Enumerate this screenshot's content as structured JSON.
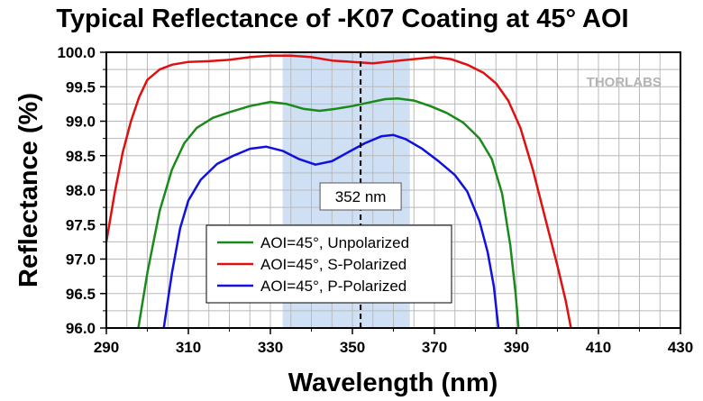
{
  "chart_data": {
    "type": "line",
    "title": "Typical Reflectance of -K07 Coating at 45° AOI",
    "xlabel": "Wavelength (nm)",
    "ylabel": "Reflectance (%)",
    "xlim": [
      290,
      430
    ],
    "ylim": [
      96.0,
      100.0
    ],
    "x_ticks": [
      "290",
      "310",
      "330",
      "350",
      "370",
      "390",
      "410",
      "430"
    ],
    "y_ticks": [
      "96.0",
      "96.5",
      "97.0",
      "97.5",
      "98.0",
      "98.5",
      "99.0",
      "99.5",
      "100.0"
    ],
    "grid": true,
    "legend_position": "lower-center",
    "highlight_band": {
      "x_start": 333,
      "x_end": 364,
      "color": "#cfe0f5"
    },
    "annotation": {
      "x": 352,
      "text": "352 nm"
    },
    "logo": "THORLABS",
    "series": [
      {
        "name": "AOI=45°, Unpolarized",
        "color": "#1a8a1a",
        "points": [
          [
            297.8,
            96.0
          ],
          [
            300,
            96.8
          ],
          [
            303,
            97.7
          ],
          [
            306,
            98.3
          ],
          [
            309,
            98.68
          ],
          [
            312,
            98.9
          ],
          [
            316,
            99.05
          ],
          [
            320,
            99.13
          ],
          [
            325,
            99.22
          ],
          [
            330,
            99.28
          ],
          [
            334,
            99.25
          ],
          [
            338,
            99.18
          ],
          [
            342,
            99.15
          ],
          [
            346,
            99.18
          ],
          [
            350,
            99.22
          ],
          [
            354,
            99.27
          ],
          [
            358,
            99.32
          ],
          [
            361,
            99.33
          ],
          [
            365,
            99.3
          ],
          [
            369,
            99.22
          ],
          [
            373,
            99.12
          ],
          [
            377,
            98.98
          ],
          [
            381,
            98.75
          ],
          [
            384,
            98.45
          ],
          [
            386.5,
            97.95
          ],
          [
            388.5,
            97.2
          ],
          [
            389.8,
            96.5
          ],
          [
            390.5,
            96.0
          ]
        ]
      },
      {
        "name": "AOI=45°, S-Polarized",
        "color": "#e01010",
        "points": [
          [
            290,
            97.25
          ],
          [
            292,
            97.95
          ],
          [
            294,
            98.55
          ],
          [
            296,
            99.0
          ],
          [
            298,
            99.35
          ],
          [
            300,
            99.6
          ],
          [
            303,
            99.75
          ],
          [
            306,
            99.82
          ],
          [
            310,
            99.86
          ],
          [
            315,
            99.87
          ],
          [
            320,
            99.89
          ],
          [
            325,
            99.93
          ],
          [
            330,
            99.95
          ],
          [
            335,
            99.95
          ],
          [
            340,
            99.93
          ],
          [
            345,
            99.88
          ],
          [
            350,
            99.86
          ],
          [
            355,
            99.84
          ],
          [
            360,
            99.87
          ],
          [
            365,
            99.9
          ],
          [
            370,
            99.93
          ],
          [
            374,
            99.9
          ],
          [
            378,
            99.82
          ],
          [
            382,
            99.7
          ],
          [
            385,
            99.55
          ],
          [
            388,
            99.3
          ],
          [
            391,
            98.9
          ],
          [
            394,
            98.3
          ],
          [
            397,
            97.6
          ],
          [
            400,
            96.9
          ],
          [
            402,
            96.4
          ],
          [
            403.3,
            96.0
          ]
        ]
      },
      {
        "name": "AOI=45°, P-Polarized",
        "color": "#1010e0",
        "points": [
          [
            304,
            96.0
          ],
          [
            306,
            96.8
          ],
          [
            308,
            97.45
          ],
          [
            310,
            97.85
          ],
          [
            313,
            98.15
          ],
          [
            317,
            98.38
          ],
          [
            321,
            98.5
          ],
          [
            325,
            98.6
          ],
          [
            329,
            98.63
          ],
          [
            333,
            98.57
          ],
          [
            337,
            98.45
          ],
          [
            341,
            98.37
          ],
          [
            345,
            98.42
          ],
          [
            349,
            98.55
          ],
          [
            353,
            98.68
          ],
          [
            357,
            98.78
          ],
          [
            360,
            98.8
          ],
          [
            363,
            98.74
          ],
          [
            367,
            98.6
          ],
          [
            371,
            98.42
          ],
          [
            375,
            98.22
          ],
          [
            378,
            97.98
          ],
          [
            381,
            97.55
          ],
          [
            383,
            97.1
          ],
          [
            384.5,
            96.6
          ],
          [
            385.6,
            96.0
          ]
        ]
      }
    ]
  }
}
